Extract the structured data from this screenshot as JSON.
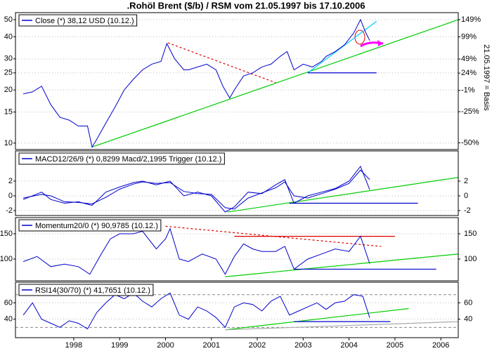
{
  "chart_data": [
    {
      "type": "line",
      "title": ".Rohöl Brent ($/b) / RSM vom 21.05.1997 bis 17.10.2006",
      "log_scale": true,
      "grid": true,
      "xlim": [
        1997.23,
        2006.88
      ],
      "x": [
        1997.4,
        1997.6,
        1997.8,
        1998.0,
        1998.2,
        1998.4,
        1998.6,
        1998.8,
        1998.9,
        1999.0,
        1999.2,
        1999.4,
        1999.6,
        1999.8,
        2000.0,
        2000.2,
        2000.4,
        2000.53,
        2000.7,
        2000.9,
        2001.0,
        2001.2,
        2001.4,
        2001.6,
        2001.75,
        2001.9,
        2002.0,
        2002.2,
        2002.4,
        2002.6,
        2002.8,
        2003.0,
        2003.15,
        2003.3,
        2003.5,
        2003.7,
        2003.9,
        2004.0,
        2004.2,
        2004.4,
        2004.6,
        2004.75,
        2004.85,
        2004.95
      ],
      "series": [
        {
          "name": "Close (*) 38,12 USD (10.12.)",
          "color": "#0000cc",
          "values": [
            19,
            19.5,
            21,
            16.5,
            14,
            13.5,
            12.5,
            12.5,
            9.5,
            10.5,
            13,
            16,
            20,
            23,
            26,
            28,
            29,
            36.6,
            30,
            26,
            26,
            27,
            28,
            26,
            21,
            18,
            20,
            24,
            25,
            27,
            28,
            31,
            33,
            26,
            28,
            27,
            29,
            31,
            33,
            36,
            42,
            50,
            43,
            38.12
          ]
        }
      ],
      "trendlines": [
        {
          "color": "#00cc00",
          "x": [
            1998.9,
            2006.88
          ],
          "y": [
            9.5,
            50
          ]
        },
        {
          "color": "#dd0000",
          "dash": true,
          "x": [
            2000.55,
            2002.9
          ],
          "y": [
            37,
            22
          ]
        },
        {
          "color": "#00ccff",
          "x": [
            2003.6,
            2005.1
          ],
          "y": [
            25,
            49
          ]
        },
        {
          "color": "#0000cc",
          "x": [
            2003.6,
            2005.1
          ],
          "y": [
            25,
            25
          ]
        }
      ],
      "ylim": [
        9.2,
        54.8
      ],
      "yticks": [
        10,
        15,
        20,
        25,
        30,
        40,
        50
      ],
      "y2lim": [
        -54.2,
        172.9
      ],
      "y2ticks": [
        {
          "value": 149,
          "label": "149%"
        },
        {
          "value": 99,
          "label": "99%"
        },
        {
          "value": 49,
          "label": "49%"
        },
        {
          "value": 24,
          "label": "24%"
        },
        {
          "value": -1,
          "label": "-1%"
        },
        {
          "value": -25,
          "label": "-25%"
        },
        {
          "value": -50,
          "label": "-50%"
        }
      ],
      "y2label": "21.05.1997 = Basis"
    },
    {
      "type": "line",
      "grid": true,
      "right_ticks": true,
      "xlim": [
        1997.23,
        2006.88
      ],
      "x": [
        1997.4,
        1997.8,
        1998.0,
        1998.3,
        1998.6,
        1998.9,
        1999.2,
        1999.5,
        1999.8,
        2000.0,
        2000.3,
        2000.6,
        2000.9,
        2001.2,
        2001.5,
        2001.8,
        2002.0,
        2002.3,
        2002.6,
        2002.9,
        2003.1,
        2003.3,
        2003.6,
        2003.9,
        2004.2,
        2004.5,
        2004.75,
        2004.95
      ],
      "series": [
        {
          "name": "MACD12/26/9 (*) 0,8299 Macd/2,1995 Trigger (10.12.)",
          "color": "#0000cc",
          "values": [
            -0.5,
            0.5,
            -0.5,
            -1,
            -0.8,
            -1.3,
            0.5,
            1.2,
            1.8,
            2,
            1.5,
            2,
            0,
            0.5,
            0,
            -2.2,
            -1.5,
            0.5,
            0.3,
            1.5,
            2.2,
            -1,
            0,
            0.5,
            1,
            2,
            4,
            0.83
          ]
        },
        {
          "color": "#0000cc",
          "values": [
            -0.3,
            0.2,
            0,
            -0.8,
            -0.9,
            -1.1,
            -0.2,
            0.9,
            1.6,
            1.9,
            1.7,
            1.8,
            0.6,
            0.3,
            0.2,
            -1.6,
            -1.8,
            -0.3,
            0.4,
            1.1,
            1.9,
            0,
            -0.3,
            0.3,
            0.9,
            1.7,
            3.5,
            2.2
          ]
        }
      ],
      "trendlines": [
        {
          "color": "#00cc00",
          "x": [
            2001.85,
            2006.88
          ],
          "y": [
            -2.2,
            2.5
          ]
        },
        {
          "color": "#0000cc",
          "x": [
            2003.2,
            2006.0
          ],
          "y": [
            -1,
            -1
          ]
        }
      ],
      "ylim": [
        -2.67,
        6.1
      ],
      "yticks": [
        2,
        0,
        -2
      ]
    },
    {
      "type": "line",
      "grid": true,
      "right_ticks": true,
      "xlim": [
        1997.23,
        2006.88
      ],
      "x": [
        1997.4,
        1997.7,
        1998.0,
        1998.3,
        1998.6,
        1998.85,
        1999.1,
        1999.3,
        1999.5,
        1999.8,
        2000.0,
        2000.3,
        2000.5,
        2000.6,
        2000.8,
        2001.0,
        2001.3,
        2001.6,
        2001.8,
        2002.0,
        2002.2,
        2002.4,
        2002.6,
        2002.9,
        2003.1,
        2003.3,
        2003.6,
        2003.9,
        2004.2,
        2004.5,
        2004.75,
        2004.95
      ],
      "series": [
        {
          "name": "Momentum20/0 (*) 90,9785 (10.12.)",
          "color": "#0000cc",
          "values": [
            95,
            105,
            85,
            90,
            85,
            70,
            110,
            140,
            150,
            150,
            155,
            120,
            140,
            160,
            100,
            95,
            110,
            100,
            70,
            105,
            130,
            120,
            115,
            115,
            125,
            80,
            100,
            110,
            120,
            115,
            145,
            90.98
          ]
        }
      ],
      "trendlines": [
        {
          "color": "#dd0000",
          "dash": true,
          "x": [
            2000.5,
            2005.2
          ],
          "y": [
            165,
            125
          ]
        },
        {
          "color": "#dd0000",
          "x": [
            2002.0,
            2005.5
          ],
          "y": [
            145,
            145
          ]
        },
        {
          "color": "#00cc00",
          "x": [
            2001.8,
            2006.88
          ],
          "y": [
            65,
            110
          ]
        },
        {
          "color": "#0000cc",
          "x": [
            2003.3,
            2006.4
          ],
          "y": [
            80,
            80
          ]
        }
      ],
      "ylim": [
        57,
        182
      ],
      "yticks": [
        150,
        100
      ]
    },
    {
      "type": "line",
      "grid": true,
      "right_ticks": true,
      "xlim": [
        1997.23,
        2006.88
      ],
      "x": [
        1997.4,
        1997.6,
        1997.8,
        1998.0,
        1998.2,
        1998.4,
        1998.6,
        1998.8,
        1999.0,
        1999.2,
        1999.4,
        1999.6,
        1999.8,
        2000.0,
        2000.2,
        2000.4,
        2000.6,
        2000.8,
        2001.0,
        2001.2,
        2001.4,
        2001.6,
        2001.8,
        2002.0,
        2002.2,
        2002.4,
        2002.6,
        2002.8,
        2003.0,
        2003.2,
        2003.4,
        2003.6,
        2003.8,
        2004.0,
        2004.2,
        2004.4,
        2004.6,
        2004.8,
        2004.95
      ],
      "series": [
        {
          "name": "RSI14(30/70) (*) 41,7651 (10.12.)",
          "color": "#0000cc",
          "values": [
            45,
            60,
            40,
            35,
            30,
            38,
            35,
            28,
            48,
            60,
            70,
            65,
            72,
            62,
            55,
            65,
            72,
            45,
            40,
            55,
            50,
            42,
            30,
            55,
            60,
            58,
            50,
            62,
            68,
            45,
            50,
            55,
            60,
            52,
            60,
            62,
            70,
            68,
            41.77
          ]
        }
      ],
      "trendlines": [
        {
          "color": "#00cc00",
          "x": [
            2001.8,
            2005.8
          ],
          "y": [
            27,
            53
          ]
        },
        {
          "color": "#0000cc",
          "x": [
            2003.3,
            2005.4
          ],
          "y": [
            37,
            37
          ]
        },
        {
          "color": "#aaaaaa",
          "x": [
            2001.8,
            2006.88
          ],
          "y": [
            27,
            37
          ]
        }
      ],
      "levels": [
        70,
        30
      ],
      "ylim": [
        17.4,
        85.2
      ],
      "yticks": [
        60,
        40
      ],
      "xticks": [
        {
          "value": 1998.5,
          "label": "1998"
        },
        {
          "value": 1999.5,
          "label": "1999"
        },
        {
          "value": 2000.5,
          "label": "2000"
        },
        {
          "value": 2001.5,
          "label": "2001"
        },
        {
          "value": 2002.5,
          "label": "2002"
        },
        {
          "value": 2003.5,
          "label": "2003"
        },
        {
          "value": 2004.5,
          "label": "2004"
        },
        {
          "value": 2005.5,
          "label": "2005"
        },
        {
          "value": 2006.5,
          "label": "2006"
        }
      ]
    }
  ]
}
